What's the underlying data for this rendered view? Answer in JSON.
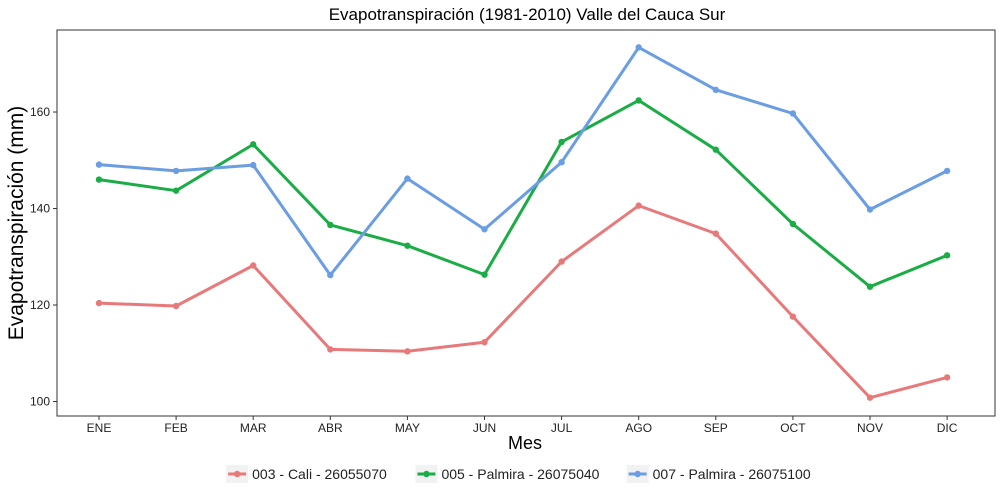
{
  "chart_data": {
    "type": "line",
    "title": "Evapotranspiración (1981-2010)  Valle del Cauca Sur",
    "xlabel": "Mes",
    "ylabel": "Evapotranspiración  (mm)",
    "categories": [
      "ENE",
      "FEB",
      "MAR",
      "ABR",
      "MAY",
      "JUN",
      "JUL",
      "AGO",
      "SEP",
      "OCT",
      "NOV",
      "DIC"
    ],
    "ylim": [
      97,
      177
    ],
    "yticks": [
      100,
      120,
      140,
      160
    ],
    "grid": false,
    "legend_position": "bottom",
    "series": [
      {
        "name": "003 - Cali - 26055070",
        "color": "#e8797a",
        "values": [
          120.4,
          119.8,
          128.2,
          110.8,
          110.4,
          112.3,
          129.0,
          140.6,
          134.8,
          117.6,
          100.8,
          105.0
        ]
      },
      {
        "name": "005 - Palmira - 26075040",
        "color": "#1aad46",
        "values": [
          146.0,
          143.7,
          153.3,
          136.6,
          132.3,
          126.3,
          153.8,
          162.4,
          152.2,
          136.8,
          123.8,
          130.3
        ]
      },
      {
        "name": "007 - Palmira - 26075100",
        "color": "#6a9de2",
        "values": [
          149.1,
          147.8,
          149.0,
          126.2,
          146.2,
          135.7,
          149.6,
          173.4,
          164.6,
          159.7,
          139.8,
          147.8
        ]
      }
    ]
  }
}
